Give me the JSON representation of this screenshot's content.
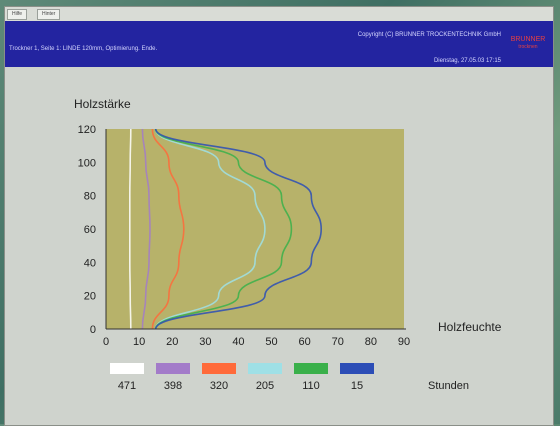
{
  "window": {
    "tabs": [
      "Hilfe",
      "Hinter"
    ],
    "header": {
      "left_text": "Trockner 1, Seite 1: LINDE 120mm, Optimierung. Ende.",
      "copyright": "Copyright (C) BRUNNER TROCKENTECHNIK GmbH",
      "date": "Dienstag, 27.05.03 17:15",
      "logo_main": "BRUNNER",
      "logo_sub": "trocknen"
    }
  },
  "chart_data": {
    "type": "line",
    "ylabel": "Holzstärke",
    "xlabel": "Holzfeuchte",
    "legend_title": "Stunden",
    "xlim": [
      0,
      90
    ],
    "ylim": [
      0,
      120
    ],
    "x_ticks": [
      0,
      10,
      20,
      30,
      40,
      50,
      60,
      70,
      80,
      90
    ],
    "y_ticks": [
      0,
      20,
      40,
      60,
      80,
      100,
      120
    ],
    "background_color": "#b7b26a",
    "y": [
      0,
      20,
      40,
      60,
      80,
      100,
      120
    ],
    "series": [
      {
        "name": "471",
        "color": "#ffffff",
        "x": [
          7.5,
          7.3,
          7.2,
          7.2,
          7.2,
          7.3,
          7.5
        ]
      },
      {
        "name": "398",
        "color": "#a37bc9",
        "x": [
          11,
          12,
          13,
          13.3,
          13,
          12,
          11
        ]
      },
      {
        "name": "320",
        "color": "#ff6a3a",
        "x": [
          14,
          19,
          22,
          23.5,
          22,
          19,
          14
        ]
      },
      {
        "name": "205",
        "color": "#9fe0e6",
        "x": [
          15,
          34,
          45,
          48,
          45,
          34,
          15
        ]
      },
      {
        "name": "110",
        "color": "#3ab04a",
        "x": [
          15,
          40,
          53,
          56,
          53,
          40,
          15
        ]
      },
      {
        "name": "15",
        "color": "#2c4db6",
        "x": [
          15,
          48,
          62,
          65,
          62,
          48,
          15
        ]
      }
    ]
  }
}
